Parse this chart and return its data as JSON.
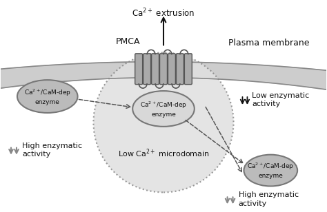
{
  "bg_color": "#ffffff",
  "membrane_line_color": "#aaaaaa",
  "microdomain_fill": "#e0e0e0",
  "microdomain_edge": "#aaaaaa",
  "enzyme_fill_left": "#bbbbbb",
  "enzyme_fill_center": "#e0e0e0",
  "enzyme_fill_right": "#bbbbbb",
  "pmca_fill": "#aaaaaa",
  "pmca_edge": "#555555",
  "arrow_color": "#111111",
  "dashed_color": "#555555",
  "text_color": "#111111",
  "label_ca2_extrusion": "Ca$^{2+}$ extrusion",
  "label_pmca": "PMCA",
  "label_plasma_membrane": "Plasma membrane",
  "label_low_enzymatic": "Low enzymatic\nactivity",
  "label_high_enzymatic_left": "High enzymatic\nactivity",
  "label_high_enzymatic_right": "High enzymatic\nactivity",
  "label_low_ca_microdomain": "Low Ca$^{2+}$ microdomain",
  "label_enzyme_left": "Ca$^{2+}$/CaM-dep\nenzyme",
  "label_enzyme_center": "Ca$^{2+}$/CaM-dep\nenzyme",
  "label_enzyme_right": "Ca$^{2+}$/CaM-dep\nenzyme",
  "figsize": [
    4.74,
    3.08
  ],
  "dpi": 100
}
